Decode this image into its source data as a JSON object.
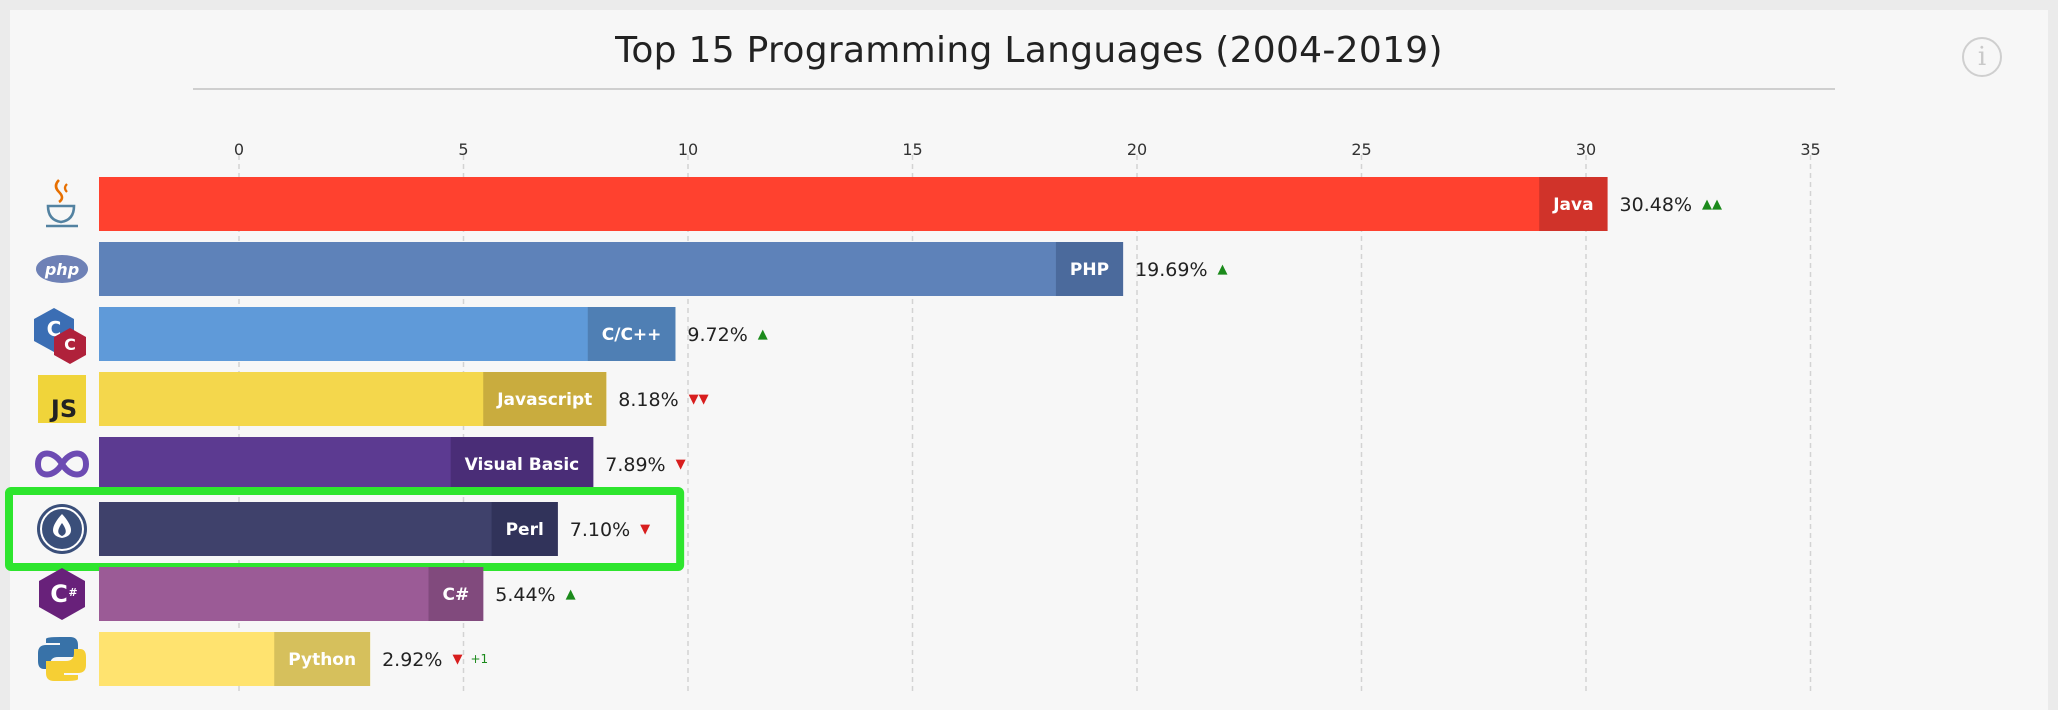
{
  "chart_data": {
    "type": "bar",
    "orientation": "horizontal",
    "title": "Top 15 Programming Languages (2004-2019)",
    "xlim": [
      0,
      35
    ],
    "xticks": [
      0,
      5,
      10,
      15,
      20,
      25,
      30,
      35
    ],
    "grid": true,
    "value_suffix": "%",
    "highlighted": "Perl",
    "highlight_color": "#2ee52e",
    "bars": [
      {
        "name": "Java",
        "value": 30.48,
        "value_text": "30.48%",
        "trend": "▲▲",
        "trend_color": "#1b8a1b",
        "rank_change": "",
        "color": "#ff412f",
        "label_bg": "#d0332a",
        "icon": "java-icon"
      },
      {
        "name": "PHP",
        "value": 19.69,
        "value_text": "19.69%",
        "trend": "▲",
        "trend_color": "#1b8a1b",
        "rank_change": "",
        "color": "#5e82b9",
        "label_bg": "#4b6a9c",
        "icon": "php-icon"
      },
      {
        "name": "C/C++",
        "value": 9.72,
        "value_text": "9.72%",
        "trend": "▲",
        "trend_color": "#1b8a1b",
        "rank_change": "",
        "color": "#5f9ad9",
        "label_bg": "#4f7fb4",
        "icon": "cpp-icon"
      },
      {
        "name": "Javascript",
        "value": 8.18,
        "value_text": "8.18%",
        "trend": "▼▼",
        "trend_color": "#d81e1e",
        "rank_change": "",
        "color": "#f4d74c",
        "label_bg": "#c9ac3e",
        "icon": "javascript-icon"
      },
      {
        "name": "Visual Basic",
        "value": 7.89,
        "value_text": "7.89%",
        "trend": "▼",
        "trend_color": "#d81e1e",
        "rank_change": "",
        "color": "#5c3a91",
        "label_bg": "#4a2d77",
        "icon": "visual-basic-icon"
      },
      {
        "name": "Perl",
        "value": 7.1,
        "value_text": "7.10%",
        "trend": "▼",
        "trend_color": "#d81e1e",
        "rank_change": "",
        "color": "#3f416b",
        "label_bg": "#31335a",
        "icon": "perl-icon"
      },
      {
        "name": "C#",
        "value": 5.44,
        "value_text": "5.44%",
        "trend": "▲",
        "trend_color": "#1b8a1b",
        "rank_change": "",
        "color": "#9b5b96",
        "label_bg": "#814a7d",
        "icon": "csharp-icon"
      },
      {
        "name": "Python",
        "value": 2.92,
        "value_text": "2.92%",
        "trend": "▼",
        "trend_color": "#d81e1e",
        "rank_change": "+1",
        "color": "#ffe36f",
        "label_bg": "#d6c05c",
        "icon": "python-icon"
      }
    ]
  }
}
